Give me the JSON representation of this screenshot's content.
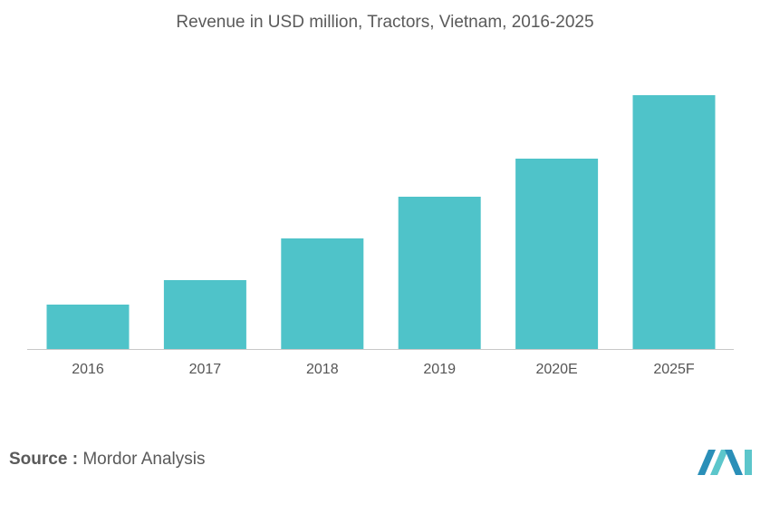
{
  "chart_data": {
    "type": "bar",
    "title": "Revenue in USD million, Tractors, Vietnam, 2016-2025",
    "categories": [
      "2016",
      "2017",
      "2018",
      "2019",
      "2020E",
      "2025F"
    ],
    "values": [
      49,
      76,
      122,
      168,
      210,
      280
    ],
    "ylim": [
      0,
      280
    ],
    "grid": false,
    "legend": "none",
    "bar_color": "#4fc3c9",
    "axis_color": "#c8c8c8"
  },
  "source": {
    "label": "Source :",
    "value": "Mordor Analysis"
  },
  "logo": {
    "name": "mordor-intelligence-logo",
    "colors": [
      "#2a8fb8",
      "#5cc6cb"
    ]
  }
}
